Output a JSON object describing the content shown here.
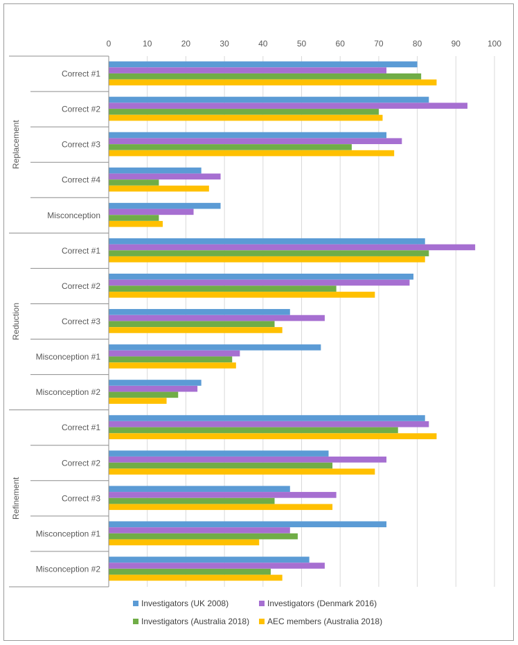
{
  "chart_data": {
    "type": "bar",
    "orientation": "horizontal",
    "xlim": [
      0,
      100
    ],
    "xticks": [
      "0",
      "10",
      "20",
      "30",
      "40",
      "50",
      "60",
      "70",
      "80",
      "90",
      "100"
    ],
    "grid": true,
    "legend_position": "bottom",
    "groups": [
      {
        "name": "Replacement",
        "categories": [
          "Correct #1",
          "Correct #2",
          "Correct #3",
          "Correct #4",
          "Misconception"
        ]
      },
      {
        "name": "Reduction",
        "categories": [
          "Correct #1",
          "Correct #2",
          "Correct #3",
          "Misconception #1",
          "Misconception #2"
        ]
      },
      {
        "name": "Refinement",
        "categories": [
          "Correct #1",
          "Correct #2",
          "Correct #3",
          "Misconception #1",
          "Misconception #2"
        ]
      }
    ],
    "series": [
      {
        "name": "Investigators (UK 2008)",
        "color": "#5b9bd5",
        "values": [
          80,
          83,
          72,
          24,
          29,
          82,
          79,
          47,
          55,
          24,
          82,
          57,
          47,
          72,
          52
        ]
      },
      {
        "name": "Investigators (Denmark 2016)",
        "color": "#a66fd1",
        "values": [
          72,
          93,
          76,
          29,
          22,
          95,
          78,
          56,
          34,
          23,
          83,
          72,
          59,
          47,
          56
        ]
      },
      {
        "name": "Investigators (Australia 2018)",
        "color": "#70ad47",
        "values": [
          81,
          70,
          63,
          13,
          13,
          83,
          59,
          43,
          32,
          18,
          75,
          58,
          43,
          49,
          42
        ]
      },
      {
        "name": "AEC members (Australia 2018)",
        "color": "#ffc000",
        "values": [
          85,
          71,
          74,
          26,
          14,
          82,
          69,
          45,
          33,
          15,
          85,
          69,
          58,
          39,
          45
        ]
      }
    ]
  }
}
